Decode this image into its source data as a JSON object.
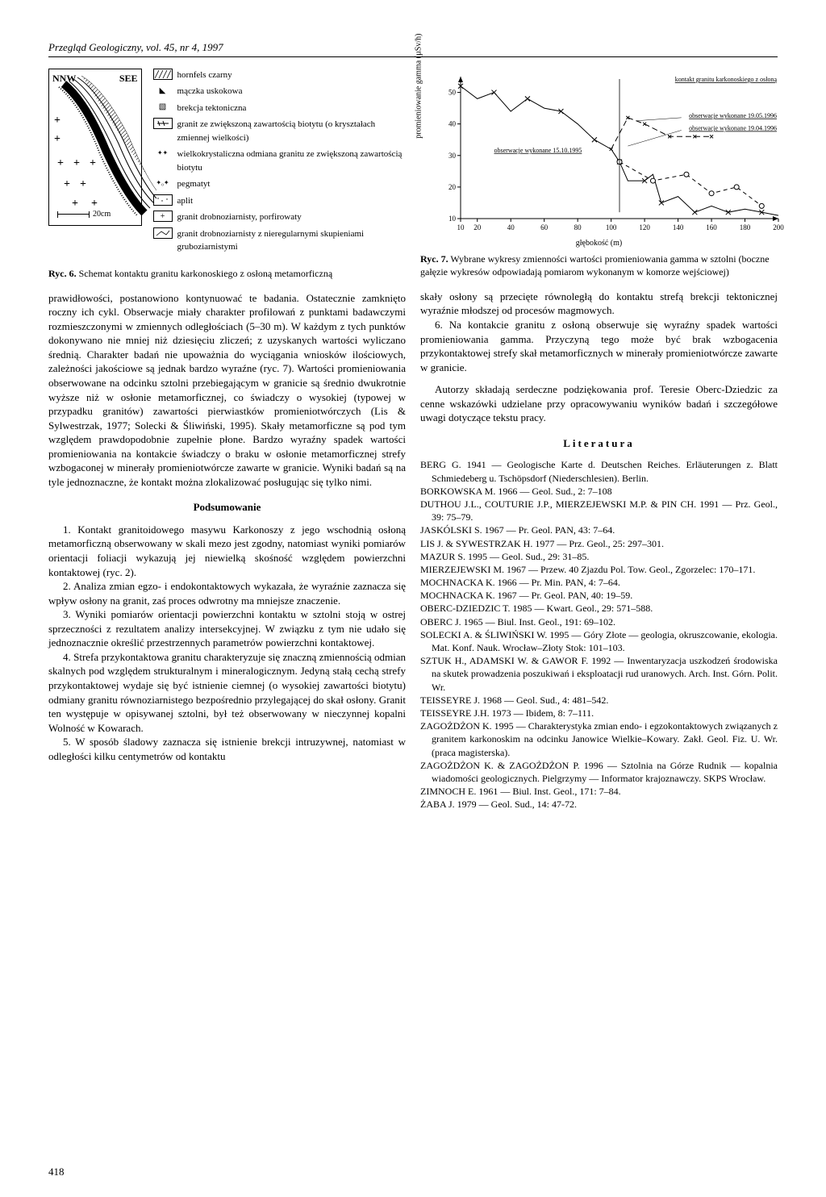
{
  "header": "Przegląd Geologiczny, vol. 45, nr 4, 1997",
  "fig6": {
    "nnw": "NNW",
    "see": "SEE",
    "scale": "20cm",
    "legend": [
      "hornfels czarny",
      "mączka uskokowa",
      "brekcja tektoniczna",
      "granit ze zwiększoną zawartością biotytu (o kryształach zmiennej wielkości)",
      "wielkokrystaliczna odmiana granitu ze zwiększoną zawartością biotytu",
      "pegmatyt",
      "aplit",
      "granit drobnoziarnisty, porfirowaty",
      "granit drobnoziarnisty z nieregularnymi skupieniami gruboziarnistymi"
    ],
    "caption_bold": "Ryc. 6.",
    "caption": "Schemat kontaktu granitu karkonoskiego z osłoną metamorficzną"
  },
  "fig7": {
    "type": "line",
    "ylabel": "promieniowanie gamma (µSv/h)",
    "xlabel": "głębokość (m)",
    "xlim": [
      10,
      200
    ],
    "ylim": [
      10,
      55
    ],
    "xticks": [
      10,
      20,
      40,
      60,
      80,
      100,
      120,
      140,
      160,
      180,
      200
    ],
    "yticks": [
      10,
      20,
      30,
      40,
      50
    ],
    "annotations": {
      "top_right": "kontakt granitu karkonoskiego z osłoną",
      "right1": "obserwacje wykonane 19.05.1996",
      "right2": "obserwacje wykonane 19.04.1996",
      "mid": "obserwacje wykonane 15.10.1995"
    },
    "main_series": {
      "x": [
        10,
        20,
        30,
        40,
        50,
        60,
        70,
        80,
        90,
        100,
        105,
        110,
        120,
        125,
        130,
        140,
        150,
        160,
        170,
        180,
        190,
        200
      ],
      "y": [
        52,
        48,
        50,
        44,
        48,
        45,
        44,
        40,
        35,
        32,
        28,
        22,
        22,
        24,
        15,
        17,
        12,
        14,
        12,
        13,
        12,
        11
      ],
      "color": "#000000",
      "style": "solid"
    },
    "branch1": {
      "x": [
        100,
        110,
        120,
        135,
        150,
        160
      ],
      "y": [
        32,
        42,
        40,
        36,
        36,
        36
      ],
      "color": "#000000",
      "style": "dashed"
    },
    "branch2": {
      "x": [
        105,
        125,
        145,
        160,
        175,
        190
      ],
      "y": [
        28,
        22,
        24,
        18,
        20,
        14
      ],
      "color": "#000000",
      "style": "dash-open"
    },
    "background_color": "#ffffff",
    "line_width": 1,
    "caption_bold": "Ryc. 7.",
    "caption": "Wybrane wykresy zmienności wartości promieniowania gamma w sztolni (boczne gałęzie wykresów odpowiadają pomiarom wykonanym w komorze wejściowej)"
  },
  "left_paras": [
    "prawidłowości, postanowiono kontynuować te badania. Ostatecznie zamknięto roczny ich cykl. Obserwacje miały charakter profilowań z punktami badawczymi rozmieszczonymi w zmiennych odległościach (5–30 m). W każdym z tych punktów dokonywano nie mniej niż dziesięciu zliczeń; z uzyskanych wartości wyliczano średnią. Charakter badań nie upoważnia do wyciągania wniosków ilościowych, zależności jakościowe są jednak bardzo wyraźne (ryc. 7). Wartości promieniowania obserwowane na odcinku sztolni przebiegającym w granicie są średnio dwukrotnie wyższe niż w osłonie metamorficznej, co świadczy o wysokiej (typowej w przypadku granitów) zawartości pierwiastków promieniotwórczych (Lis & Sylwestrzak, 1977; Solecki & Śliwiński, 1995). Skały metamorficzne są pod tym względem prawdopodobnie zupełnie płone. Bardzo wyraźny spadek wartości promieniowania na kontakcie świadczy o braku w osłonie metamorficznej strefy wzbogaconej w minerały promieniotwórcze zawarte w granicie. Wyniki badań są na tyle jednoznaczne, że kontakt można zlokalizować posługując się tylko nimi."
  ],
  "summary_heading": "Podsumowanie",
  "summary_items": [
    "1. Kontakt granitoidowego masywu Karkonoszy z jego wschodnią osłoną metamorficzną obserwowany w skali mezo jest zgodny, natomiast wyniki pomiarów orientacji foliacji wykazują jej niewielką skośność względem powierzchni kontaktowej (ryc. 2).",
    "2. Analiza zmian egzo- i endokontaktowych wykazała, że wyraźnie zaznacza się wpływ osłony na granit, zaś proces odwrotny ma mniejsze znaczenie.",
    "3. Wyniki pomiarów orientacji powierzchni kontaktu w sztolni stoją w ostrej sprzeczności z rezultatem analizy intersekcyjnej. W związku z tym nie udało się jednoznacznie określić przestrzennych parametrów powierzchni kontaktowej.",
    "4. Strefa przykontaktowa granitu charakteryzuje się znaczną zmiennością odmian skalnych pod względem strukturalnym i mineralogicznym. Jedyną stałą cechą strefy przykontaktowej wydaje się być istnienie ciemnej (o wysokiej zawartości biotytu) odmiany granitu równoziarnistego bezpośrednio przylegającej do skał osłony. Granit ten występuje w opisywanej sztolni, był też obserwowany w nieczynnej kopalni Wolność w Kowarach.",
    "5. W sposób śladowy zaznacza się istnienie brekcji intruzywnej, natomiast w odległości kilku centymetrów od kontaktu"
  ],
  "right_paras": [
    "skały osłony są przecięte równoległą do kontaktu strefą brekcji tektonicznej wyraźnie młodszej od procesów magmowych.",
    "6. Na kontakcie granitu z osłoną obserwuje się wyraźny spadek wartości promieniowania gamma. Przyczyną tego może być brak wzbogacenia przykontaktowej strefy skał metamorficznych w minerały promieniotwórcze zawarte w granicie.",
    "Autorzy składają serdeczne podziękowania prof. Teresie Oberc-Dziedzic za cenne wskazówki udzielane przy opracowywaniu wyników badań i szczegółowe uwagi dotyczące tekstu pracy."
  ],
  "lit_heading": "Literatura",
  "references": [
    "BERG G. 1941 — Geologische Karte d. Deutschen Reiches. Erläuterungen z. Blatt Schmiedeberg u. Tschöpsdorf (Niederschlesien). Berlin.",
    "BORKOWSKA M. 1966 — Geol. Sud., 2: 7–108",
    "DUTHOU J.L., COUTURIE J.P., MIERZEJEWSKI M.P. & PIN CH. 1991 — Prz. Geol., 39: 75–79.",
    "JASKÓLSKI S. 1967 — Pr. Geol. PAN, 43: 7–64.",
    "LIS J. & SYWESTRZAK H. 1977 — Prz. Geol., 25: 297–301.",
    "MAZUR S. 1995 — Geol. Sud., 29: 31–85.",
    "MIERZEJEWSKI M. 1967 — Przew. 40 Zjazdu Pol. Tow. Geol., Zgorzelec: 170–171.",
    "MOCHNACKA K. 1966 — Pr. Min. PAN, 4: 7–64.",
    "MOCHNACKA K. 1967 — Pr. Geol. PAN, 40: 19–59.",
    "OBERC-DZIEDZIC T. 1985 — Kwart. Geol., 29: 571–588.",
    "OBERC J. 1965 — Biul. Inst. Geol., 191: 69–102.",
    "SOLECKI A. & ŚLIWIŃSKI W. 1995 — Góry Złote — geologia, okruszcowanie, ekologia. Mat. Konf. Nauk. Wrocław–Złoty Stok: 101–103.",
    "SZTUK H., ADAMSKI W. & GAWOR F. 1992 — Inwentaryzacja uszkodzeń środowiska na skutek prowadzenia poszukiwań i eksploatacji rud uranowych. Arch. Inst. Górn. Polit. Wr.",
    "TEISSEYRE J. 1968 — Geol. Sud., 4: 481–542.",
    "TEISSEYRE J.H. 1973 — Ibidem, 8: 7–111.",
    "ZAGOŻDŻON K. 1995 — Charakterystyka zmian endo- i egzokontaktowych związanych z granitem karkonoskim na odcinku Janowice Wielkie–Kowary. Zakł. Geol. Fiz. U. Wr. (praca magisterska).",
    "ZAGOŻDŻON K. & ZAGOŻDŻON P. 1996 — Sztolnia na Górze Rudnik — kopalnia wiadomości geologicznych. Pielgrzymy — Informator krajoznawczy. SKPS Wrocław.",
    "ZIMNOCH E. 1961 — Biul. Inst. Geol., 171: 7–84.",
    "ŻABA J. 1979 — Geol. Sud., 14: 47-72."
  ],
  "page_number": "418"
}
